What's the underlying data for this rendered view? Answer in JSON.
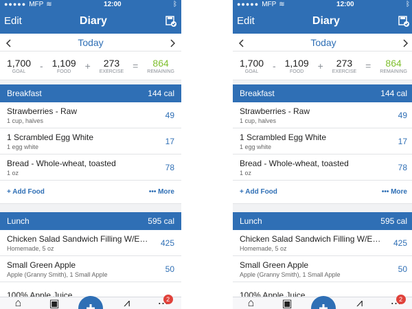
{
  "status": {
    "carrier": "MFP",
    "time": "12:00"
  },
  "nav": {
    "edit_label": "Edit",
    "title": "Diary"
  },
  "datebar": {
    "label": "Today"
  },
  "summary": {
    "goal": "1,700",
    "goal_label": "GOAL",
    "food": "1,109",
    "food_label": "FOOD",
    "exercise": "273",
    "exercise_label": "EXERCISE",
    "remaining": "864",
    "remaining_label": "REMAINING",
    "op_minus": "-",
    "op_plus": "+",
    "op_equals": "="
  },
  "breakfast": {
    "name": "Breakfast",
    "cal": "144 cal",
    "items": [
      {
        "name": "Strawberries - Raw",
        "sub": "1 cup, halves",
        "cal": "49"
      },
      {
        "name": "1 Scrambled Egg White",
        "sub": "1 egg white",
        "cal": "17"
      },
      {
        "name": "Bread - Whole-wheat, toasted",
        "sub": "1 oz",
        "cal": "78"
      }
    ],
    "add_food": "+ Add Food",
    "more": "••• More"
  },
  "lunch": {
    "name": "Lunch",
    "cal": "595 cal",
    "items": [
      {
        "name": "Chicken Salad Sandwich Filling W/E…",
        "sub": "Homemade, 5 oz",
        "cal": "425"
      },
      {
        "name": "Small Green Apple",
        "sub": "Apple (Granny Smith), 1 Small Apple",
        "cal": "50"
      },
      {
        "name": "100% Apple Juice",
        "sub": "",
        "cal": ""
      }
    ]
  },
  "tabbar": {
    "badge": "2"
  },
  "colors": {
    "brand": "#2f6fb5",
    "remaining_green": "#7fbf2f",
    "badge_red": "#e0423b"
  }
}
